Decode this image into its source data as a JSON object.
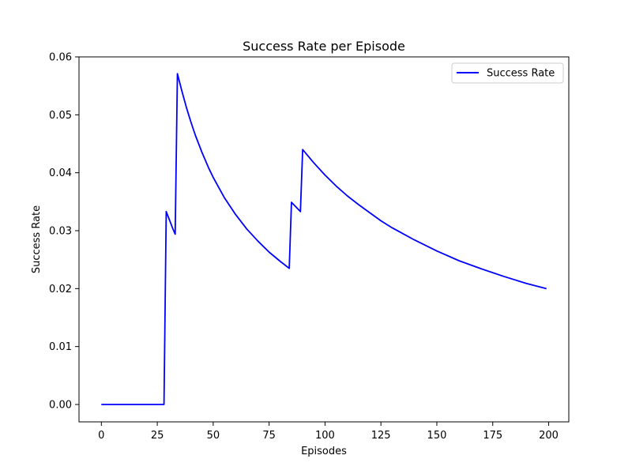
{
  "chart_data": {
    "type": "line",
    "title": "Success Rate per Episode",
    "xlabel": "Episodes",
    "ylabel": "Success Rate",
    "xlim": [
      -10,
      209
    ],
    "ylim": [
      -0.003,
      0.06
    ],
    "xticks": [
      0,
      25,
      50,
      75,
      100,
      125,
      150,
      175,
      200
    ],
    "yticks": [
      0.0,
      0.01,
      0.02,
      0.03,
      0.04,
      0.05,
      0.06
    ],
    "ytick_labels": [
      "0.00",
      "0.01",
      "0.02",
      "0.03",
      "0.04",
      "0.05",
      "0.06"
    ],
    "grid": false,
    "legend": {
      "position": "top-right"
    },
    "series": [
      {
        "name": "Success Rate",
        "color": "#0000ff",
        "x": [
          0,
          28,
          29,
          30,
          31,
          32,
          33,
          34,
          35,
          36,
          38,
          40,
          42,
          45,
          48,
          50,
          55,
          60,
          65,
          70,
          75,
          80,
          84,
          85,
          86,
          87,
          88,
          89,
          90,
          95,
          100,
          105,
          110,
          115,
          120,
          125,
          130,
          140,
          150,
          160,
          170,
          180,
          190,
          199
        ],
        "y": [
          0.0,
          0.0,
          0.0333,
          0.0323,
          0.0313,
          0.0303,
          0.0294,
          0.0571,
          0.0556,
          0.0541,
          0.0513,
          0.0488,
          0.0465,
          0.0435,
          0.0408,
          0.0392,
          0.0357,
          0.0328,
          0.0303,
          0.0282,
          0.0263,
          0.0247,
          0.0235,
          0.0349,
          0.0345,
          0.0341,
          0.0337,
          0.0333,
          0.044,
          0.0417,
          0.0396,
          0.0377,
          0.036,
          0.0345,
          0.0331,
          0.0317,
          0.0305,
          0.0284,
          0.0265,
          0.0248,
          0.0234,
          0.0221,
          0.0209,
          0.02
        ]
      }
    ]
  }
}
